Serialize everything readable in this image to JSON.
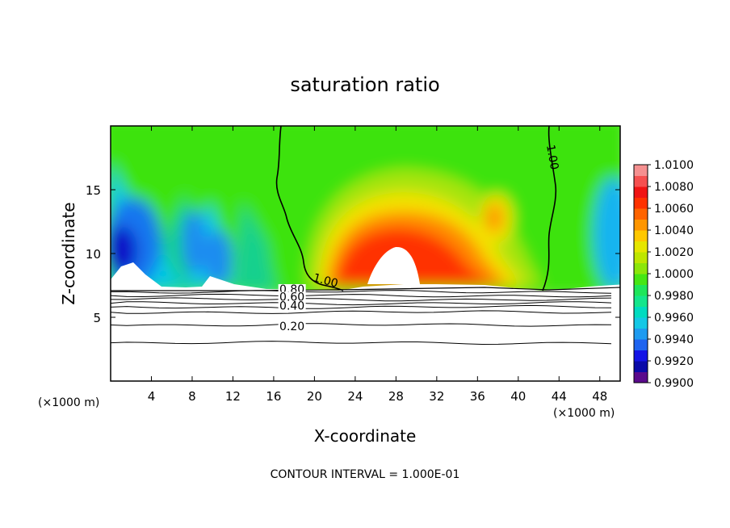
{
  "chart_data": {
    "type": "heatmap",
    "title": "saturation ratio",
    "xlabel": "X-coordinate",
    "ylabel": "Z-coordinate",
    "x_unit": "(×1000 m)",
    "x_unit_right": "(×1000 m)",
    "footer": "CONTOUR INTERVAL = 1.000E-01",
    "xlim": [
      0,
      50
    ],
    "ylim": [
      0,
      20
    ],
    "x_ticks": [
      4,
      8,
      12,
      16,
      20,
      24,
      28,
      32,
      36,
      40,
      44,
      48
    ],
    "y_ticks": [
      5,
      10,
      15
    ],
    "colorbar": {
      "min": 0.99,
      "max": 1.01,
      "labels": [
        "0.9900",
        "0.9920",
        "0.9940",
        "0.9960",
        "0.9980",
        "1.0000",
        "1.0020",
        "1.0040",
        "1.0060",
        "1.0080",
        "1.0100"
      ]
    },
    "contour_labels": [
      {
        "text": "1.00",
        "x": 21,
        "z": 7.6
      },
      {
        "text": "1.00",
        "x": 43,
        "z": 17.5
      },
      {
        "text": "0.80",
        "x": 17.8,
        "z": 6.9
      },
      {
        "text": "0.60",
        "x": 17.8,
        "z": 6.3
      },
      {
        "text": "0.40",
        "x": 17.8,
        "z": 5.6
      },
      {
        "text": "0.20",
        "x": 17.8,
        "z": 4.0
      }
    ],
    "lower_contours_z": [
      7.0,
      6.7,
      6.4,
      6.1,
      5.8,
      5.4,
      4.4,
      3.0
    ]
  }
}
